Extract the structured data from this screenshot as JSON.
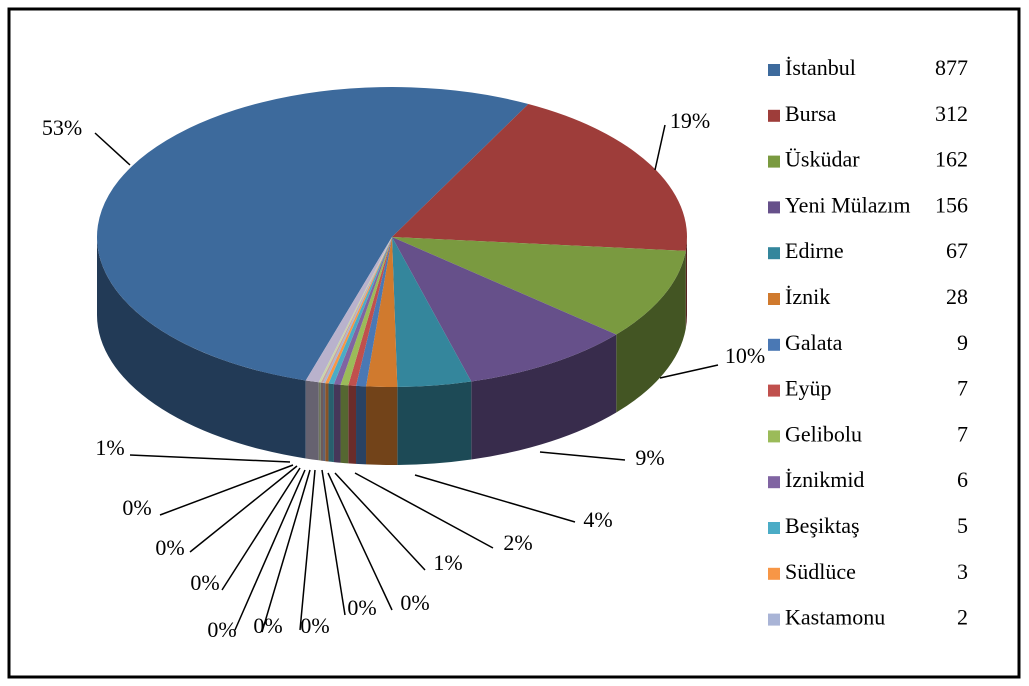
{
  "chart_data": {
    "type": "pie3d",
    "categories": [
      "İstanbul",
      "Bursa",
      "Üsküdar",
      "Yeni Mülazım",
      "Edirne",
      "İznik",
      "Galata",
      "Eyüp",
      "Gelibolu",
      "İznikmid",
      "Beşiktaş",
      "Südlüce",
      "Kastamonu",
      null,
      null,
      null
    ],
    "values": [
      877,
      312,
      162,
      156,
      67,
      28,
      9,
      7,
      7,
      6,
      5,
      3,
      2,
      2,
      2,
      12
    ],
    "value_labels": [
      "53%",
      "19%",
      "10%",
      "9%",
      "4%",
      "2%",
      "1%",
      "0%",
      "0%",
      "0%",
      "0%",
      "0%",
      "0%",
      "0%",
      "0%",
      "1%"
    ],
    "colors": [
      "#3d6a9c",
      "#9e3d3a",
      "#7a9a40",
      "#66508a",
      "#34869c",
      "#d07a2e",
      "#4a78b4",
      "#c0504d",
      "#9bbb59",
      "#8064a2",
      "#4bacc6",
      "#f79646",
      "#a9b4d6",
      "#c6a4a3",
      "#c9d6a8",
      "#b9b2cc"
    ],
    "legend": "right"
  }
}
